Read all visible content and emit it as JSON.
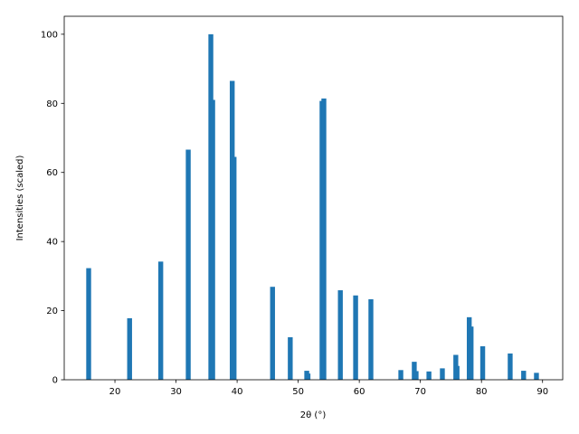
{
  "chart_data": {
    "type": "bar",
    "x_label": "2θ (°)",
    "y_label": "Intensities (scaled)",
    "x": [
      15.7,
      22.4,
      27.5,
      32.0,
      35.7,
      36.0,
      39.2,
      39.5,
      45.8,
      48.7,
      51.4,
      51.6,
      53.9,
      54.2,
      56.9,
      59.4,
      61.9,
      66.8,
      69.0,
      69.3,
      71.4,
      73.6,
      75.8,
      76.0,
      78.0,
      78.3,
      80.2,
      84.7,
      86.9,
      89.0
    ],
    "values": [
      32.3,
      17.8,
      34.2,
      66.6,
      100,
      81,
      86.5,
      64.5,
      26.9,
      12.3,
      2.6,
      1.8,
      80.7,
      81.4,
      25.9,
      24.4,
      23.3,
      2.8,
      5.2,
      2.5,
      2.4,
      3.3,
      7.2,
      4.0,
      18.1,
      15.4,
      9.7,
      7.6,
      2.6,
      2.0
    ],
    "color": "#1f77b4",
    "xlim": [
      11.7,
      93.3
    ],
    "xticks": [
      20,
      30,
      40,
      50,
      60,
      70,
      80,
      90
    ],
    "ylim": [
      0,
      105.2
    ],
    "yticks": [
      0,
      20,
      40,
      60,
      80,
      100
    ]
  }
}
